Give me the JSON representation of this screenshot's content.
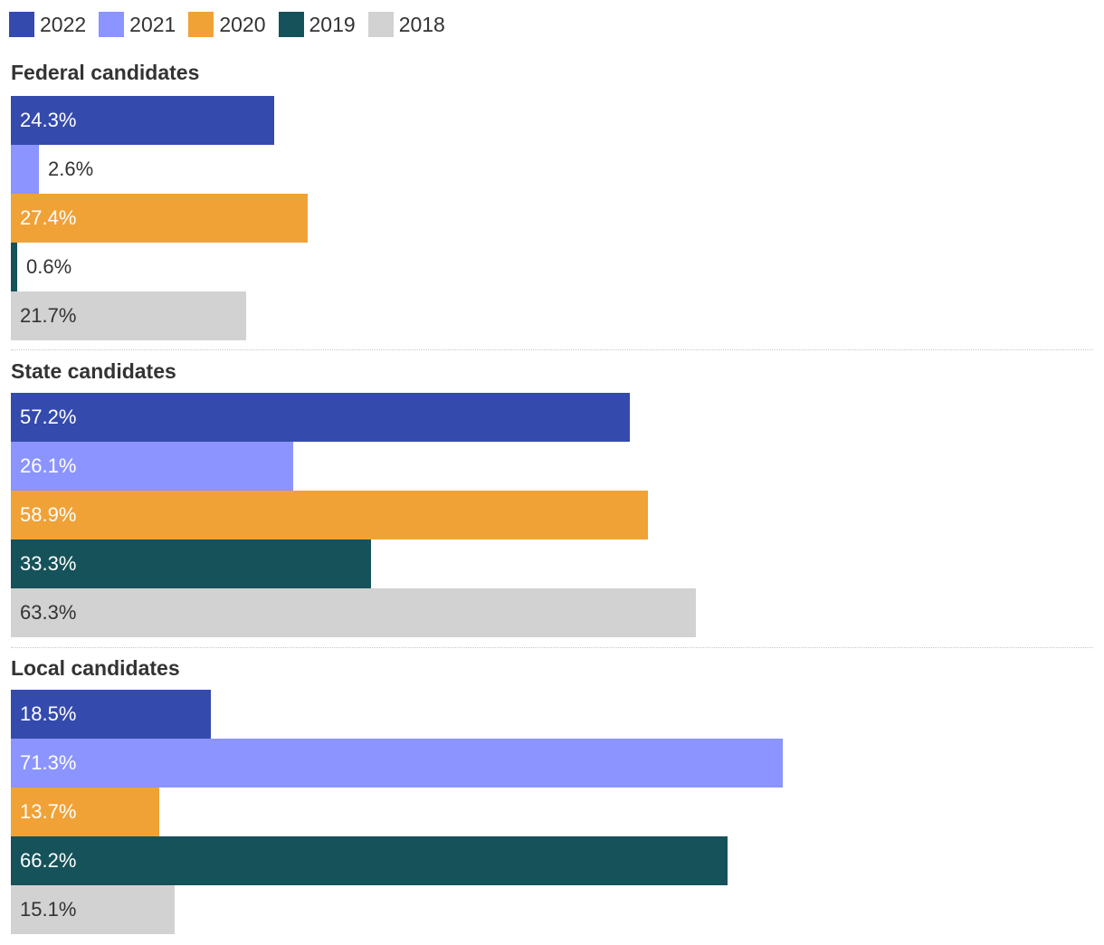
{
  "chart_data": {
    "type": "bar",
    "orientation": "horizontal",
    "unit": "%",
    "xlim": [
      0,
      100
    ],
    "grid": false,
    "legend": {
      "position": "top-left",
      "entries": [
        "2022",
        "2021",
        "2020",
        "2019",
        "2018"
      ]
    },
    "series": [
      {
        "name": "2022",
        "color": "#344aad"
      },
      {
        "name": "2021",
        "color": "#8b94ff"
      },
      {
        "name": "2020",
        "color": "#f0a236"
      },
      {
        "name": "2019",
        "color": "#16525a"
      },
      {
        "name": "2018",
        "color": "#d2d2d2"
      }
    ],
    "groups": [
      {
        "title": "Federal candidates",
        "values": [
          24.3,
          2.6,
          27.4,
          0.6,
          21.7
        ],
        "labels": [
          "24.3%",
          "2.6%",
          "27.4%",
          "0.6%",
          "21.7%"
        ]
      },
      {
        "title": "State candidates",
        "values": [
          57.2,
          26.1,
          58.9,
          33.3,
          63.3
        ],
        "labels": [
          "57.2%",
          "26.1%",
          "58.9%",
          "33.3%",
          "63.3%"
        ]
      },
      {
        "title": "Local candidates",
        "values": [
          18.5,
          71.3,
          13.7,
          66.2,
          15.1
        ],
        "labels": [
          "18.5%",
          "71.3%",
          "13.7%",
          "66.2%",
          "15.1%"
        ]
      }
    ]
  },
  "colors": {
    "text_dark": "#333333",
    "text_light": "#ffffff"
  }
}
